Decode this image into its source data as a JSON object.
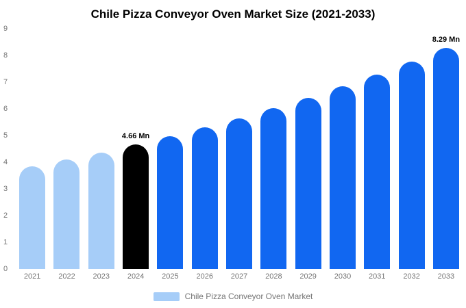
{
  "title": "Chile Pizza Conveyor Oven Market Size (2021-2033)",
  "chart_data": {
    "type": "bar",
    "title": "Chile Pizza Conveyor Oven Market Size (2021-2033)",
    "categories": [
      "2021",
      "2022",
      "2023",
      "2024",
      "2025",
      "2026",
      "2027",
      "2028",
      "2029",
      "2030",
      "2031",
      "2032",
      "2033"
    ],
    "values": [
      3.85,
      4.1,
      4.37,
      4.66,
      4.97,
      5.3,
      5.65,
      6.02,
      6.42,
      6.84,
      7.29,
      7.77,
      8.29
    ],
    "bar_colors": [
      "#a6cdf8",
      "#a6cdf8",
      "#a6cdf8",
      "#000000",
      "#1167f1",
      "#1167f1",
      "#1167f1",
      "#1167f1",
      "#1167f1",
      "#1167f1",
      "#1167f1",
      "#1167f1",
      "#1167f1"
    ],
    "annotations": [
      {
        "category": "2024",
        "text": "4.66 Mn"
      },
      {
        "category": "2033",
        "text": "8.29 Mn"
      }
    ],
    "xlabel": "",
    "ylabel": "",
    "ylim": [
      0,
      9
    ],
    "yticks": [
      0,
      1,
      2,
      3,
      4,
      5,
      6,
      7,
      8,
      9
    ],
    "grid": false,
    "legend": {
      "label": "Chile Pizza Conveyor Oven Market",
      "swatch_color": "#a6cdf8",
      "position": "bottom"
    },
    "colors": {
      "historical": "#a6cdf8",
      "base_year": "#000000",
      "forecast": "#1167f1"
    }
  }
}
